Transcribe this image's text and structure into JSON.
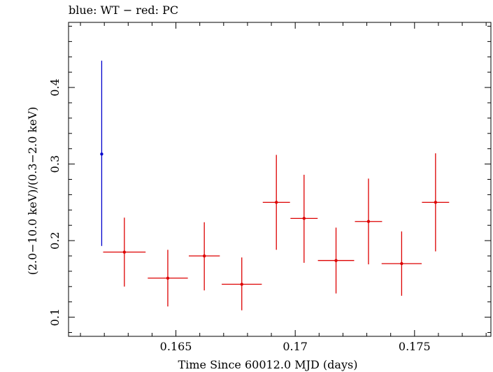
{
  "header": {
    "title": "blue: WT − red: PC"
  },
  "chart_data": {
    "type": "scatter",
    "title": "blue: WT − red: PC",
    "xlabel": "Time Since 60012.0 MJD (days)",
    "ylabel": "(2.0−10.0 keV)/(0.3−2.0 keV)",
    "xlim": [
      0.1605,
      0.1782
    ],
    "ylim": [
      0.075,
      0.485
    ],
    "xticks": [
      0.165,
      0.17,
      0.175
    ],
    "xtick_labels": [
      "0.165",
      "0.17",
      "0.175"
    ],
    "yticks": [
      0.1,
      0.2,
      0.3,
      0.4
    ],
    "ytick_labels": [
      "0.1",
      "0.2",
      "0.3",
      "0.4"
    ],
    "grid": false,
    "series": [
      {
        "name": "WT",
        "color": "#0000cc",
        "points": [
          {
            "x": 0.16189,
            "y": 0.313,
            "xerr": 0.0,
            "ylo": 0.193,
            "yhi": 0.435
          }
        ]
      },
      {
        "name": "PC",
        "color": "#dd0000",
        "points": [
          {
            "x": 0.16284,
            "y": 0.185,
            "xerr": 0.00089,
            "ylo": 0.14,
            "yhi": 0.23
          },
          {
            "x": 0.16466,
            "y": 0.151,
            "xerr": 0.00084,
            "ylo": 0.114,
            "yhi": 0.188
          },
          {
            "x": 0.16619,
            "y": 0.18,
            "xerr": 0.00065,
            "ylo": 0.135,
            "yhi": 0.224
          },
          {
            "x": 0.16776,
            "y": 0.143,
            "xerr": 0.00084,
            "ylo": 0.109,
            "yhi": 0.178
          },
          {
            "x": 0.16921,
            "y": 0.25,
            "xerr": 0.00057,
            "ylo": 0.188,
            "yhi": 0.312
          },
          {
            "x": 0.17037,
            "y": 0.229,
            "xerr": 0.00057,
            "ylo": 0.171,
            "yhi": 0.286
          },
          {
            "x": 0.17171,
            "y": 0.174,
            "xerr": 0.00076,
            "ylo": 0.131,
            "yhi": 0.217
          },
          {
            "x": 0.17307,
            "y": 0.225,
            "xerr": 0.00057,
            "ylo": 0.169,
            "yhi": 0.281
          },
          {
            "x": 0.17446,
            "y": 0.17,
            "xerr": 0.00084,
            "ylo": 0.128,
            "yhi": 0.212
          },
          {
            "x": 0.17588,
            "y": 0.25,
            "xerr": 0.00057,
            "ylo": 0.186,
            "yhi": 0.314
          }
        ]
      }
    ]
  }
}
